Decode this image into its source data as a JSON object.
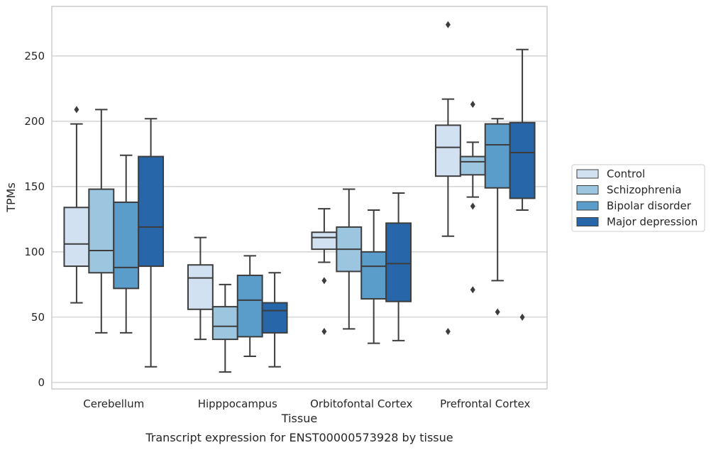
{
  "chart_data": {
    "type": "box",
    "xlabel": "Tissue",
    "ylabel": "TPMs",
    "caption": "Transcript expression for ENST00000573928 by tissue",
    "categories": [
      "Cerebellum",
      "Hipppocampus",
      "Orbitofontal Cortex",
      "Prefrontal Cortex"
    ],
    "ylim": [
      -5,
      288
    ],
    "yticks": [
      0,
      50,
      100,
      150,
      200,
      250
    ],
    "grid": "horizontal",
    "legend_position": "right",
    "series": [
      {
        "name": "Control",
        "color": "#d1e1f1",
        "boxes": [
          {
            "whisker_low": 61,
            "q1": 89,
            "median": 106,
            "q3": 134,
            "whisker_high": 198,
            "outliers": [
              209
            ]
          },
          {
            "whisker_low": 33,
            "q1": 56,
            "median": 80,
            "q3": 90,
            "whisker_high": 111,
            "outliers": []
          },
          {
            "whisker_low": 92,
            "q1": 102,
            "median": 111,
            "q3": 115,
            "whisker_high": 133,
            "outliers": [
              78,
              39
            ]
          },
          {
            "whisker_low": 112,
            "q1": 158,
            "median": 180,
            "q3": 197,
            "whisker_high": 217,
            "outliers": [
              274,
              39
            ]
          }
        ]
      },
      {
        "name": "Schizophrenia",
        "color": "#9cc5df",
        "boxes": [
          {
            "whisker_low": 38,
            "q1": 84,
            "median": 101,
            "q3": 148,
            "whisker_high": 209,
            "outliers": []
          },
          {
            "whisker_low": 8,
            "q1": 33,
            "median": 43,
            "q3": 58,
            "whisker_high": 75,
            "outliers": []
          },
          {
            "whisker_low": 41,
            "q1": 85,
            "median": 102,
            "q3": 119,
            "whisker_high": 148,
            "outliers": []
          },
          {
            "whisker_low": 142,
            "q1": 159,
            "median": 169,
            "q3": 173,
            "whisker_high": 184,
            "outliers": [
              213,
              135,
              71
            ]
          }
        ]
      },
      {
        "name": "Bipolar disorder",
        "color": "#5a9cca",
        "boxes": [
          {
            "whisker_low": 38,
            "q1": 72,
            "median": 88,
            "q3": 138,
            "whisker_high": 174,
            "outliers": []
          },
          {
            "whisker_low": 20,
            "q1": 35,
            "median": 63,
            "q3": 82,
            "whisker_high": 97,
            "outliers": []
          },
          {
            "whisker_low": 30,
            "q1": 64,
            "median": 89,
            "q3": 100,
            "whisker_high": 132,
            "outliers": []
          },
          {
            "whisker_low": 78,
            "q1": 149,
            "median": 182,
            "q3": 198,
            "whisker_high": 202,
            "outliers": [
              54
            ]
          }
        ]
      },
      {
        "name": "Major depression",
        "color": "#2666a9",
        "boxes": [
          {
            "whisker_low": 12,
            "q1": 89,
            "median": 119,
            "q3": 173,
            "whisker_high": 202,
            "outliers": []
          },
          {
            "whisker_low": 12,
            "q1": 38,
            "median": 55,
            "q3": 61,
            "whisker_high": 84,
            "outliers": []
          },
          {
            "whisker_low": 32,
            "q1": 62,
            "median": 91,
            "q3": 122,
            "whisker_high": 145,
            "outliers": []
          },
          {
            "whisker_low": 132,
            "q1": 141,
            "median": 176,
            "q3": 199,
            "whisker_high": 255,
            "outliers": [
              50
            ]
          }
        ]
      }
    ]
  }
}
